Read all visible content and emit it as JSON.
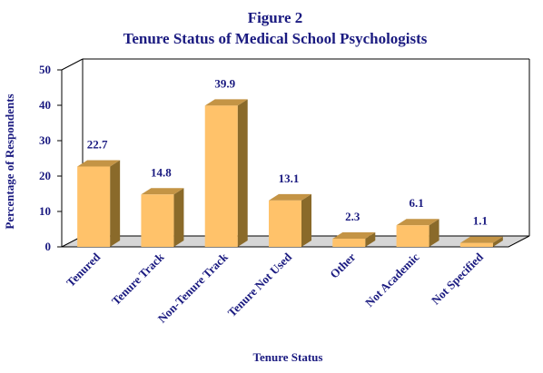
{
  "chart_data": {
    "type": "bar",
    "title": "Figure 2",
    "subtitle": "Tenure Status of Medical School Psychologists",
    "xlabel": "Tenure Status",
    "ylabel": "Percentage of Respondents",
    "ylim": [
      0,
      50
    ],
    "yticks": [
      "0",
      "10",
      "20",
      "30",
      "40",
      "50"
    ],
    "categories": [
      "Tenured",
      "Tenure Track",
      "Non-Tenure Track",
      "Tenure Not Used",
      "Other",
      "Not Academic",
      "Not Specified"
    ],
    "values": [
      22.7,
      14.8,
      39.9,
      13.1,
      2.3,
      6.1,
      1.1
    ],
    "value_labels": [
      "22.7",
      "14.8",
      "39.9",
      "13.1",
      "2.3",
      "6.1",
      "1.1"
    ],
    "grid": false,
    "legend": "none",
    "colors": {
      "bar_front": "#ffc26a",
      "bar_side": "#8a6a2a",
      "bar_top": "#c49445",
      "floor": "#d6d6d6",
      "text": "#1a1a80",
      "frame": "#000000"
    }
  }
}
